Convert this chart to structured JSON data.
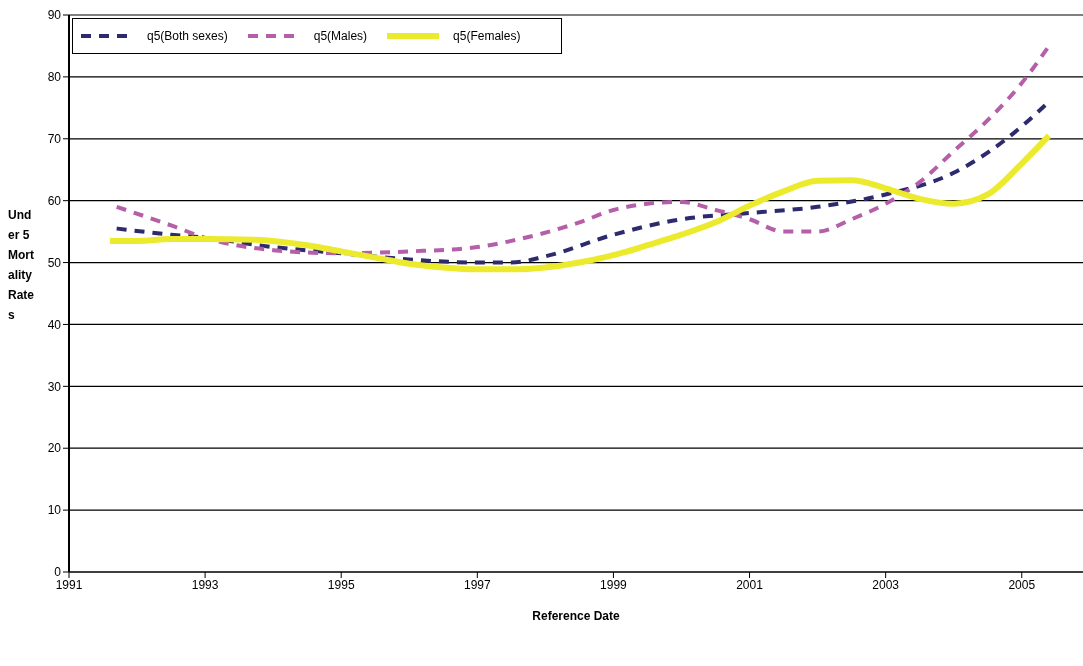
{
  "chart_data": {
    "type": "line",
    "xlabel": "Reference Date",
    "ylabel": "Under 5 Mortality Rates",
    "xlim": [
      1991,
      2005.9
    ],
    "xticks": [
      1991,
      1993,
      1995,
      1997,
      1999,
      2001,
      2003,
      2005
    ],
    "ylim": [
      0,
      90
    ],
    "yticks": [
      0,
      10,
      20,
      30,
      40,
      50,
      60,
      70,
      80,
      90
    ],
    "grid": "y",
    "legend": "top left",
    "marker": "none",
    "series": [
      {
        "name": "q5(Both sexes)",
        "color": "#2e2a6e",
        "line_style": "dashed",
        "x": [
          1991.7,
          1992.5,
          1993,
          1994,
          1995,
          1996,
          1997,
          1997.5,
          1998,
          1999,
          2000,
          2001,
          2002,
          2003,
          2004,
          2005,
          2005.4
        ],
        "values": [
          55.5,
          54.5,
          54,
          52.5,
          51.5,
          50.5,
          50,
          50,
          51,
          54.5,
          57,
          58,
          59,
          61,
          64.5,
          72,
          76
        ]
      },
      {
        "name": "q5(Males)",
        "color": "#b45fa8",
        "line_style": "dashed",
        "x": [
          1991.7,
          1992.5,
          1993,
          1994,
          1995,
          1996,
          1997,
          1997.5,
          1998.5,
          1999,
          1999.5,
          2000,
          2000.5,
          2001,
          2001.5,
          2002,
          2002.5,
          2003,
          2003.5,
          2004,
          2004.5,
          2005,
          2005.4
        ],
        "values": [
          59,
          56,
          54,
          52,
          51.5,
          51.8,
          52.5,
          53.5,
          56.5,
          58.5,
          59.5,
          59.8,
          58.5,
          57,
          55,
          55,
          57,
          59.5,
          63,
          68,
          73,
          79,
          85
        ]
      },
      {
        "name": "q5(Females)",
        "color": "#ecea2c",
        "line_style": "solid",
        "x": [
          1991.6,
          1992,
          1992.5,
          1993,
          1993.7,
          1994.5,
          1995,
          1995.5,
          1996,
          1996.5,
          1997,
          1997.5,
          1998,
          1998.5,
          1999,
          1999.5,
          2000,
          2000.5,
          2001,
          2001.5,
          2002,
          2002.5,
          2003,
          2003.5,
          2004,
          2004.5,
          2005,
          2005.4
        ],
        "values": [
          53.5,
          53.5,
          53.8,
          53.8,
          53.7,
          52.8,
          51.8,
          50.8,
          49.8,
          49.2,
          48.9,
          48.9,
          49.2,
          50,
          51.2,
          52.8,
          54.5,
          56.5,
          59.2,
          61.5,
          63.2,
          63.3,
          62,
          60.3,
          59.5,
          61,
          66,
          70.5
        ]
      }
    ]
  }
}
